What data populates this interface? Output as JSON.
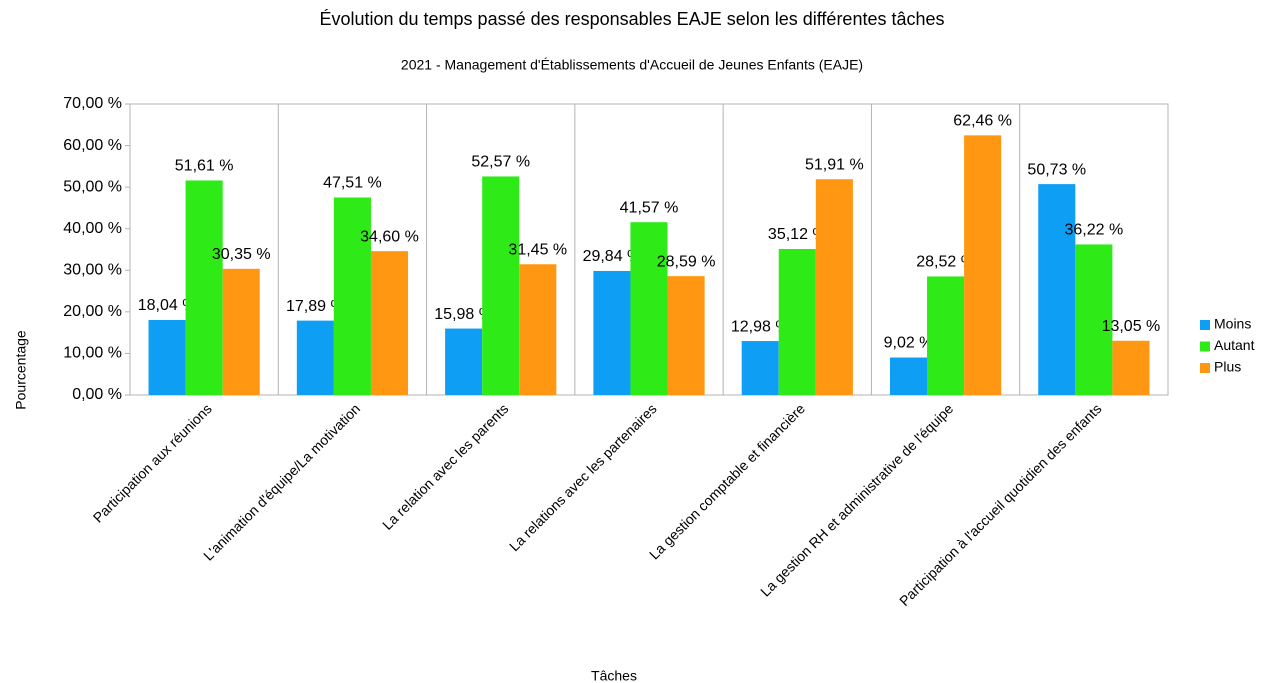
{
  "chart_data": {
    "type": "bar",
    "title": "Évolution du temps passé des responsables EAJE selon les différentes tâches",
    "subtitle": "2021 - Management d'Établissements d'Accueil de Jeunes Enfants (EAJE)",
    "x_label": "Tâches",
    "y_label": "Pourcentage",
    "categories": [
      "Participation aux réunions",
      "L'animation d'équipe/La motivation",
      "La relation avec les parents",
      "La relations avec les partenaires",
      "La gestion comptable et financière",
      "La gestion RH et administrative de l'équipe",
      "Participation à l'accueil quotidien des enfants"
    ],
    "series": [
      {
        "name": "Moins",
        "color": "#0e9ff5",
        "values": [
          18.04,
          17.89,
          15.98,
          29.84,
          12.98,
          9.02,
          50.73
        ],
        "value_labels": [
          "18,04 %",
          "17,89 %",
          "15,98 %",
          "29,84 %",
          "12,98 %",
          "9,02 %",
          "50,73 %"
        ]
      },
      {
        "name": "Autant",
        "color": "#2eea17",
        "values": [
          51.61,
          47.51,
          52.57,
          41.57,
          35.12,
          28.52,
          36.22
        ],
        "value_labels": [
          "51,61 %",
          "47,51 %",
          "52,57 %",
          "41,57 %",
          "35,12 %",
          "28,52 %",
          "36,22 %"
        ]
      },
      {
        "name": "Plus",
        "color": "#ff9712",
        "values": [
          30.35,
          34.6,
          31.45,
          28.59,
          51.91,
          62.46,
          13.05
        ],
        "value_labels": [
          "30,35 %",
          "34,60 %",
          "31,45 %",
          "28,59 %",
          "51,91 %",
          "62,46 %",
          "13,05 %"
        ]
      }
    ],
    "ylim": [
      0,
      70
    ],
    "yticks": [
      {
        "value": 0,
        "label": "0,00 %"
      },
      {
        "value": 10,
        "label": "10,00 %"
      },
      {
        "value": 20,
        "label": "20,00 %"
      },
      {
        "value": 30,
        "label": "30,00 %"
      },
      {
        "value": 40,
        "label": "40,00 %"
      },
      {
        "value": 50,
        "label": "50,00 %"
      },
      {
        "value": 60,
        "label": "60,00 %"
      },
      {
        "value": 70,
        "label": "70,00 %"
      }
    ],
    "grid": false,
    "legend": "right"
  }
}
